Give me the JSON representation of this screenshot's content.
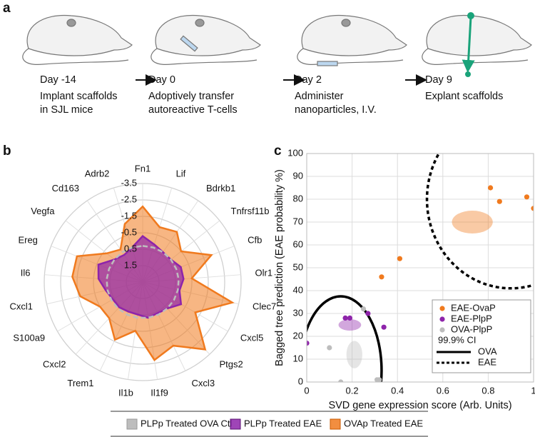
{
  "panel_labels": [
    "a",
    "b",
    "c"
  ],
  "timeline": [
    {
      "day": "Day -14",
      "lines": [
        "Implant scaffolds",
        "in SJL mice"
      ]
    },
    {
      "day": "Day 0",
      "lines": [
        "Adoptively transfer",
        "autoreactive T-cells"
      ]
    },
    {
      "day": "Day 2",
      "lines": [
        "Administer",
        "nanoparticles, I.V."
      ]
    },
    {
      "day": "Day 9",
      "lines": [
        "Explant scaffolds"
      ]
    }
  ],
  "chart_data": [
    {
      "type": "radar",
      "categories": [
        "Fn1",
        "Lif",
        "Bdrkb1",
        "Tnfrsf11b",
        "Cfb",
        "Olr1",
        "Clec7",
        "Cxcl5",
        "Ptgs2",
        "Cxcl3",
        "Il1f9",
        "Il1b",
        "Trem1",
        "Cxcl2",
        "S100a9",
        "Cxcl1",
        "Il6",
        "Ereg",
        "Vegfa",
        "Cd163",
        "Adrb2"
      ],
      "rlim": [
        2.5,
        -3.5
      ],
      "rticks": [
        -3.5,
        -2.5,
        -1.5,
        -0.5,
        0.5,
        1.5
      ],
      "series": [
        {
          "name": "PLPp Treated OVA Ctl",
          "color": "#bdbdbd",
          "values": [
            0.3,
            0.3,
            0.3,
            0.3,
            0.3,
            0.3,
            0.3,
            0.3,
            0.3,
            0.3,
            0.3,
            0.3,
            0.3,
            0.3,
            0.3,
            0.3,
            0.3,
            0.3,
            0.3,
            0.3,
            0.3
          ]
        },
        {
          "name": "PLPp Treated EAE",
          "color": "#8e24aa",
          "values": [
            -0.3,
            0.1,
            0.3,
            0.3,
            0.0,
            0.0,
            0.2,
            -0.2,
            0.3,
            0.4,
            0.3,
            0.5,
            0.5,
            0.4,
            0.4,
            0.2,
            -0.2,
            -0.4,
            0.3,
            0.5,
            0.3
          ]
        },
        {
          "name": "OVAp Treated EAE",
          "color": "#f07a1e",
          "values": [
            -2.1,
            -1.0,
            -1.2,
            -0.5,
            -2.0,
            -0.5,
            -3.1,
            -1.2,
            -3.1,
            -1.8,
            -2.3,
            -0.5,
            -1.4,
            -0.5,
            -0.5,
            -1.4,
            -1.8,
            -1.8,
            -0.3,
            0.1,
            -1.2
          ]
        }
      ]
    },
    {
      "type": "scatter",
      "x_label": "SVD gene expression score (Arb. Units)",
      "y_label": "Bagged tree prediction (EAE probability %)",
      "xlim": [
        0,
        1
      ],
      "ylim": [
        0,
        100
      ],
      "xticks": [
        0,
        0.2,
        0.4,
        0.6,
        0.8,
        1
      ],
      "yticks": [
        0,
        10,
        20,
        30,
        40,
        50,
        60,
        70,
        80,
        90,
        100
      ],
      "grid": true,
      "series": [
        {
          "name": "EAE-OvaP",
          "color": "#f07a1e",
          "x": [
            0.81,
            0.85,
            0.97,
            1.0,
            0.41,
            0.33
          ],
          "y": [
            85,
            79,
            81,
            76,
            54,
            46
          ],
          "mean_ellipse": {
            "center": [
              0.73,
              70
            ],
            "radii": [
              0.09,
              5
            ]
          }
        },
        {
          "name": "EAE-PlpP",
          "color": "#8e24aa",
          "x": [
            0,
            0.17,
            0.19,
            0.27,
            0.34
          ],
          "y": [
            17,
            28,
            28,
            30,
            24
          ],
          "mean_ellipse": {
            "center": [
              0.19,
              25
            ],
            "radii": [
              0.05,
              2.5
            ]
          }
        },
        {
          "name": "OVA-PlpP",
          "color": "#bdbdbd",
          "x": [
            0.1,
            0.15,
            0.25,
            0.31,
            0.32
          ],
          "y": [
            15,
            0,
            32,
            1,
            1
          ],
          "mean_ellipse": {
            "center": [
              0.21,
              12
            ],
            "radii": [
              0.035,
              6
            ]
          }
        }
      ],
      "ci_label": "99.9% CI",
      "ci_ellipses": [
        {
          "name": "OVA",
          "dashed": false,
          "center": [
            0.15,
            5
          ],
          "radii": [
            0.18,
            32.5
          ]
        },
        {
          "name": "EAE",
          "dashed": true,
          "center": [
            0.9,
            80
          ],
          "radii": [
            0.37,
            39
          ]
        }
      ]
    }
  ]
}
